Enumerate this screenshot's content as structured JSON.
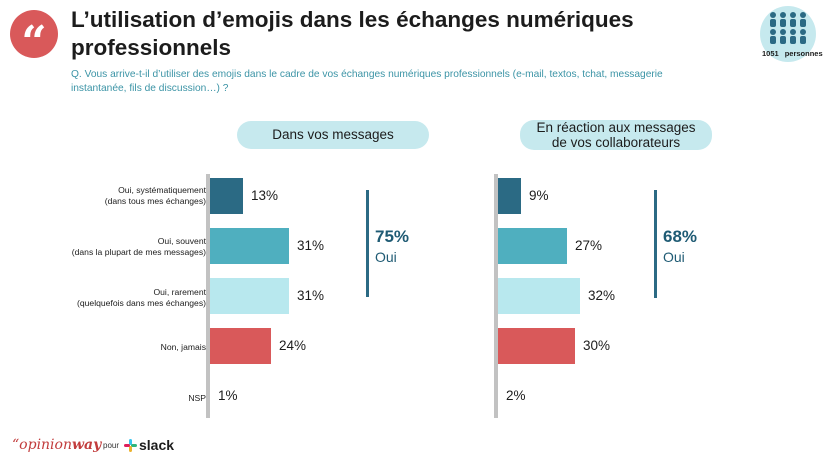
{
  "header": {
    "title": "L’utilisation d’emojis dans les échanges numériques professionnels",
    "question": "Q. Vous arrive-t-il d’utiliser des emojis dans le cadre de vos échanges numériques professionnels (e-mail, textos, tchat, messagerie instantanée, fils de discussion…) ?",
    "quote_mark": "“",
    "sample_size": "1051",
    "sample_label": "personnes"
  },
  "colors": {
    "systematiquement": "#2b6a84",
    "souvent": "#4fafbf",
    "rarement": "#b8e8ee",
    "jamais": "#d9595a",
    "nsp": "#c2c2c2",
    "accent": "#1f5b74"
  },
  "categories": [
    {
      "line1": "Oui, systématiquement",
      "line2": "(dans tous mes échanges)"
    },
    {
      "line1": "Oui, souvent",
      "line2": "(dans la plupart de mes messages)"
    },
    {
      "line1": "Oui, rarement",
      "line2": "(quelquefois dans mes échanges)"
    },
    {
      "line1": "Non, jamais",
      "line2": ""
    },
    {
      "line1": "NSP",
      "line2": ""
    }
  ],
  "panels": [
    {
      "header": "Dans vos messages",
      "total_value": "75%",
      "total_label": "Oui"
    },
    {
      "header_line1": "En réaction aux messages",
      "header_line2": "de vos collaborateurs",
      "total_value": "68%",
      "total_label": "Oui"
    }
  ],
  "chart_data": {
    "type": "bar",
    "orientation": "horizontal",
    "categories": [
      "Oui, systématiquement (dans tous mes échanges)",
      "Oui, souvent (dans la plupart de mes messages)",
      "Oui, rarement (quelquefois dans mes échanges)",
      "Non, jamais",
      "NSP"
    ],
    "series": [
      {
        "name": "Dans vos messages",
        "values": [
          13,
          31,
          31,
          24,
          1
        ],
        "labels": [
          "13%",
          "31%",
          "31%",
          "24%",
          "1%"
        ]
      },
      {
        "name": "En réaction aux messages de vos collaborateurs",
        "values": [
          9,
          27,
          32,
          30,
          2
        ],
        "labels": [
          "9%",
          "27%",
          "32%",
          "30%",
          "2%"
        ]
      }
    ],
    "totals": [
      {
        "value": "75%",
        "label": "Oui"
      },
      {
        "value": "68%",
        "label": "Oui"
      }
    ],
    "unit": "%",
    "xlim": [
      0,
      100
    ],
    "grid": false,
    "legend": "none"
  },
  "footer": {
    "brand_prefix": "opinion",
    "brand_suffix": "way",
    "connector": "pour",
    "partner": "slack"
  }
}
